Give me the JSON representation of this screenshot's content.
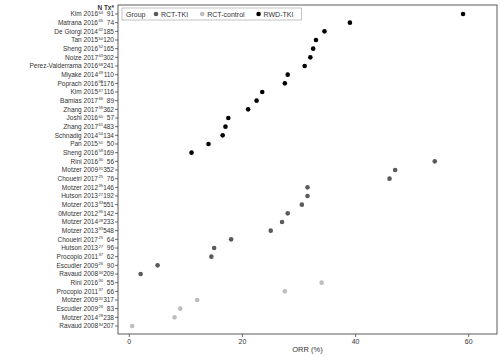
{
  "chart_data": {
    "type": "scatter",
    "orientation": "horizontal",
    "x_label": "ORR (%)",
    "n_label": "N Tx*",
    "legend_title": "Group",
    "legend": "top-left",
    "grid": false,
    "categories": [
      "Kim 2016",
      "Matrana 2016",
      "De Giorgi 2014",
      "Tan 2015",
      "Sheng 2016",
      "Noize 2017",
      "Perez-Valderrama 2016",
      "Miyake 2014",
      "Poprach 2016",
      "Kim 2015",
      "Bamias 2017",
      "Zhang 2017",
      "Joshi 2016",
      "Zhang 2017",
      "Schnadig 2014",
      "Pan 2015",
      "Sheng 2016",
      "Rini 2016",
      "Motzer 2009",
      "Choueiri 2017",
      "Motzer 2012",
      "Hutson 2013",
      "Motzer 2013",
      "0Motzer 2012",
      "Motzer 2014",
      "Motzer 2013",
      "Choueiri 2017",
      "Hutson 2013",
      "Procopio 2011",
      "Escudier 2009",
      "Ravaud 2008",
      "Rini 2016",
      "Procopio 2011",
      "Motzer 2009",
      "Escudier 2009",
      "Motzer 2014",
      "Ravaud 2008"
    ],
    "refs": [
      "64",
      "65",
      "62",
      "50",
      "52",
      "63",
      "68",
      "49",
      "53",
      "47",
      "66",
      "58",
      "60",
      "61",
      "54",
      "51",
      "59",
      "30",
      "31",
      "25",
      "35",
      "27",
      "33",
      "35",
      "28",
      "33",
      "25",
      "27",
      "37",
      "26",
      "34",
      "30",
      "37",
      "31",
      "26",
      "28",
      "34"
    ],
    "n_tx": [
      91,
      74,
      185,
      120,
      165,
      302,
      241,
      110,
      1176,
      116,
      89,
      362,
      57,
      483,
      134,
      50,
      169,
      56,
      352,
      76,
      146,
      192,
      551,
      142,
      233,
      548,
      64,
      96,
      62,
      90,
      209,
      55,
      66,
      317,
      83,
      238,
      207
    ],
    "xlim": [
      -2,
      65
    ],
    "xticks": [
      0,
      20,
      40,
      60
    ],
    "series": [
      {
        "name": "RCT-TKI",
        "color": "#5a5a5a",
        "marker": "circle",
        "values": [
          null,
          null,
          null,
          null,
          null,
          null,
          null,
          null,
          null,
          null,
          null,
          null,
          null,
          null,
          null,
          null,
          null,
          54,
          47,
          46,
          31.5,
          31.5,
          30.5,
          28,
          27,
          25,
          18,
          15,
          14.5,
          5,
          2,
          null,
          null,
          null,
          null,
          null,
          null
        ]
      },
      {
        "name": "RCT-control",
        "color": "#bdbdbd",
        "marker": "circle",
        "values": [
          null,
          null,
          null,
          null,
          null,
          null,
          null,
          null,
          null,
          null,
          null,
          null,
          null,
          null,
          null,
          null,
          null,
          null,
          null,
          null,
          null,
          null,
          null,
          null,
          null,
          null,
          null,
          null,
          null,
          null,
          null,
          34,
          27.5,
          12,
          9,
          8,
          0.5
        ]
      },
      {
        "name": "RWD-TKI",
        "color": "#000000",
        "marker": "circle",
        "values": [
          59,
          39,
          34.5,
          33,
          32.5,
          32,
          31,
          28,
          27.5,
          23.5,
          22.5,
          21,
          17.5,
          17,
          16.5,
          14,
          11,
          null,
          null,
          null,
          null,
          null,
          null,
          null,
          null,
          null,
          null,
          null,
          null,
          null,
          null,
          null,
          null,
          null,
          null,
          null,
          null
        ]
      }
    ]
  }
}
